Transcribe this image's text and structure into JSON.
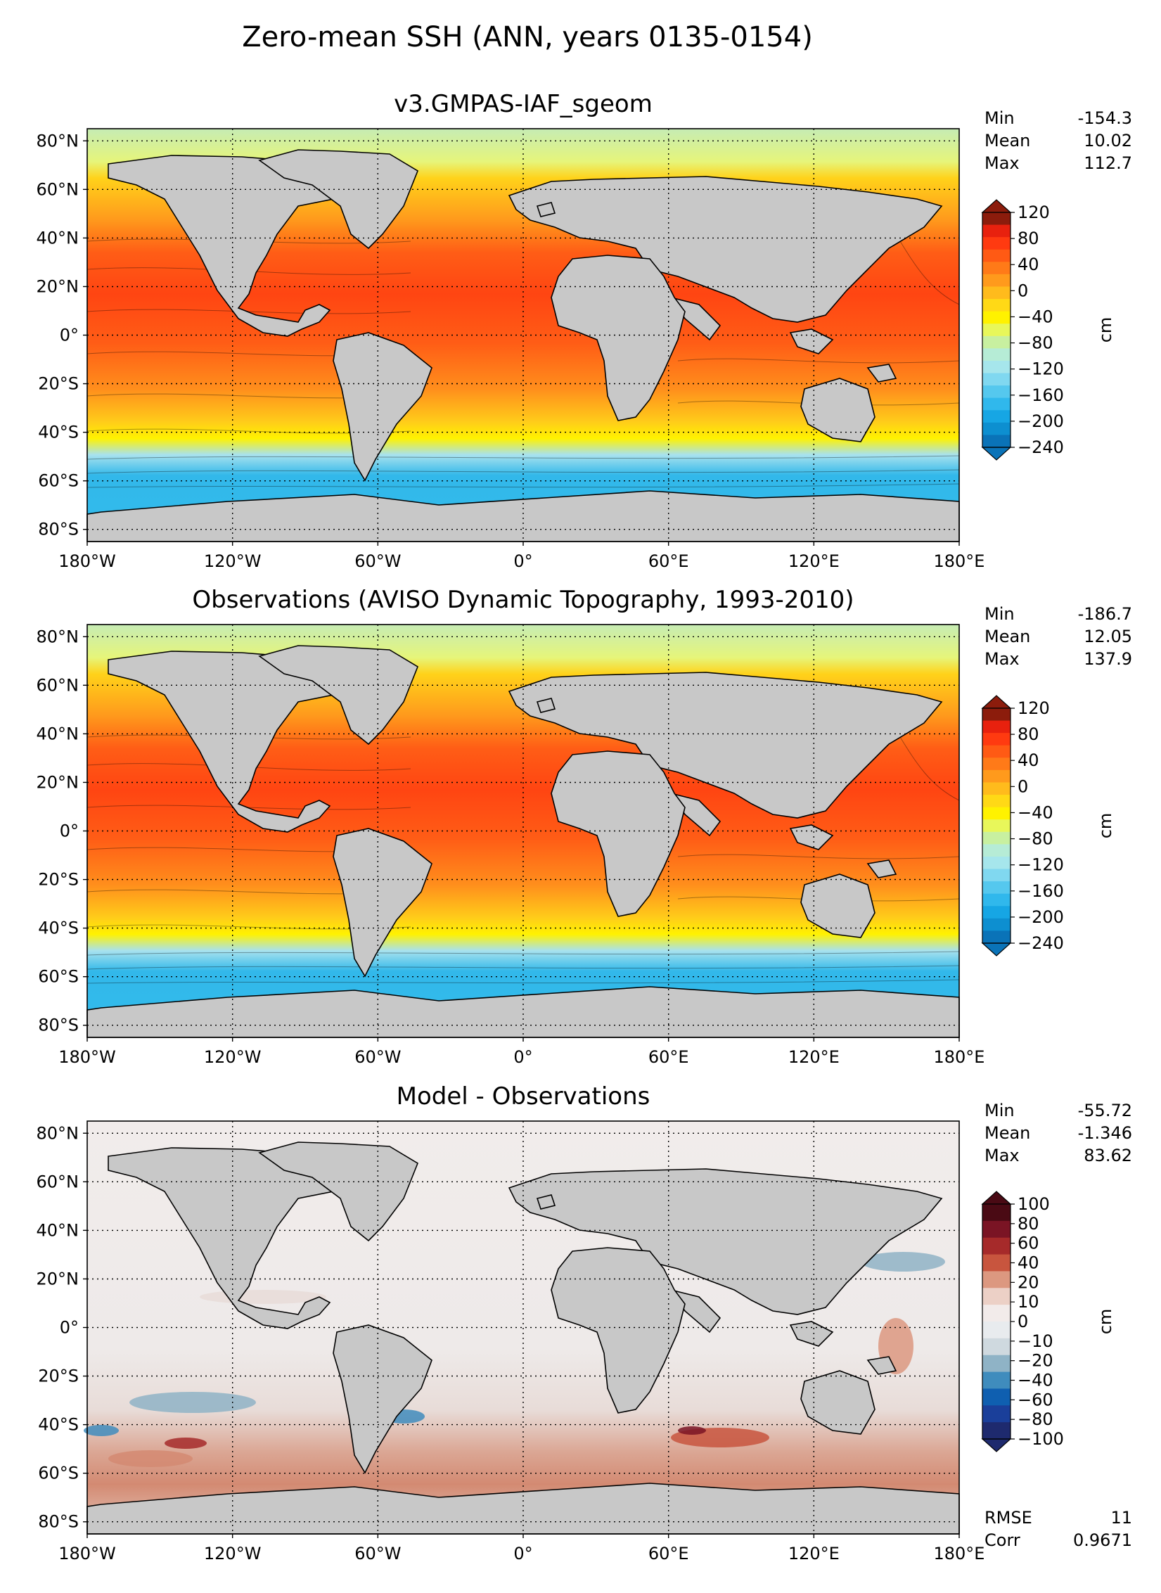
{
  "figure": {
    "suptitle": "Zero-mean SSH (ANN, years 0135-0154)"
  },
  "panels": [
    {
      "title": "v3.GMPAS-IAF_sgeom",
      "stats": [
        {
          "label": "Min",
          "value": "-154.3"
        },
        {
          "label": "Mean",
          "value": "10.02"
        },
        {
          "label": "Max",
          "value": "112.7"
        }
      ],
      "colorbar": {
        "unit": "cm",
        "ticks": [
          "120",
          "80",
          "40",
          "0",
          "−40",
          "−80",
          "−120",
          "−160",
          "−200",
          "−240"
        ],
        "colors": [
          "#8c1c0c",
          "#e8210e",
          "#ff3a10",
          "#ff5a14",
          "#ff7a18",
          "#ff9a1c",
          "#ffbb1c",
          "#ffd916",
          "#fff200",
          "#e8f75a",
          "#c8f0a0",
          "#b6ecd6",
          "#a6e6ec",
          "#80d8f0",
          "#55c8ee",
          "#30b8ec",
          "#16a6e4",
          "#0d8fd0",
          "#0a73b8"
        ]
      }
    },
    {
      "title": "Observations (AVISO Dynamic Topography, 1993-2010)",
      "stats": [
        {
          "label": "Min",
          "value": "-186.7"
        },
        {
          "label": "Mean",
          "value": "12.05"
        },
        {
          "label": "Max",
          "value": "137.9"
        }
      ],
      "colorbar": {
        "unit": "cm",
        "ticks": [
          "120",
          "80",
          "40",
          "0",
          "−40",
          "−80",
          "−120",
          "−160",
          "−200",
          "−240"
        ],
        "colors": [
          "#8c1c0c",
          "#e8210e",
          "#ff3a10",
          "#ff5a14",
          "#ff7a18",
          "#ff9a1c",
          "#ffbb1c",
          "#ffd916",
          "#fff200",
          "#e8f75a",
          "#c8f0a0",
          "#b6ecd6",
          "#a6e6ec",
          "#80d8f0",
          "#55c8ee",
          "#30b8ec",
          "#16a6e4",
          "#0d8fd0",
          "#0a73b8"
        ]
      }
    },
    {
      "title": "Model - Observations",
      "stats": [
        {
          "label": "Min",
          "value": "-55.72"
        },
        {
          "label": "Mean",
          "value": "-1.346"
        },
        {
          "label": "Max",
          "value": "83.62"
        }
      ],
      "extra_stats": [
        {
          "label": "RMSE",
          "value": "11"
        },
        {
          "label": "Corr",
          "value": "0.9671"
        }
      ],
      "colorbar": {
        "unit": "cm",
        "ticks": [
          "100",
          "80",
          "60",
          "40",
          "20",
          "10",
          "0",
          "−10",
          "−20",
          "−40",
          "−60",
          "−80",
          "−100"
        ],
        "colors": [
          "#4a0a14",
          "#7a1424",
          "#a62a2a",
          "#c8553e",
          "#dc9880",
          "#ecd0c6",
          "#f2ebea",
          "#e8ebee",
          "#cfd9df",
          "#8fb3c6",
          "#3f8cbd",
          "#0f5fb0",
          "#1a3f9a",
          "#1e2a6e"
        ]
      }
    }
  ],
  "axes": {
    "xticks": [
      "180°W",
      "120°W",
      "60°W",
      "0°",
      "60°E",
      "120°E",
      "180°E"
    ],
    "yticks": [
      "80°N",
      "60°N",
      "40°N",
      "20°N",
      "0°",
      "20°S",
      "40°S",
      "60°S",
      "80°S"
    ]
  },
  "chart_data": [
    {
      "type": "heatmap",
      "title": "v3.GMPAS-IAF_sgeom",
      "xlim": [
        -180,
        180
      ],
      "ylim": [
        -85,
        85
      ],
      "colorbar_range": [
        -240,
        120
      ],
      "colorbar_label": "cm",
      "grid": true,
      "stats": {
        "min": -154.3,
        "mean": 10.02,
        "max": 112.7
      }
    },
    {
      "type": "heatmap",
      "title": "Observations (AVISO Dynamic Topography, 1993-2010)",
      "xlim": [
        -180,
        180
      ],
      "ylim": [
        -85,
        85
      ],
      "colorbar_range": [
        -240,
        120
      ],
      "colorbar_label": "cm",
      "grid": true,
      "stats": {
        "min": -186.7,
        "mean": 12.05,
        "max": 137.9
      }
    },
    {
      "type": "heatmap",
      "title": "Model - Observations",
      "xlim": [
        -180,
        180
      ],
      "ylim": [
        -85,
        85
      ],
      "colorbar_range": [
        -100,
        100
      ],
      "colorbar_label": "cm",
      "grid": true,
      "stats": {
        "min": -55.72,
        "mean": -1.346,
        "max": 83.62,
        "rmse": 11,
        "corr": 0.9671
      }
    }
  ]
}
